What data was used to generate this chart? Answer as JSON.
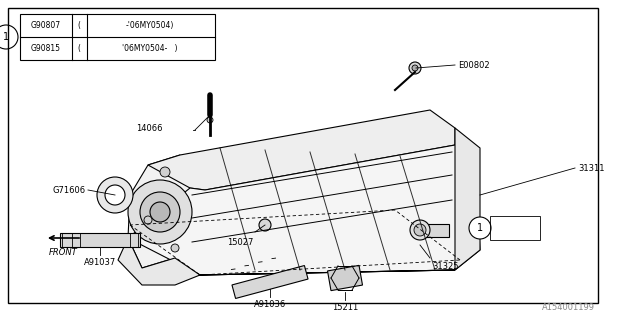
{
  "bg_color": "#ffffff",
  "line_color": "#000000",
  "watermark": "A154001199",
  "table_rows": [
    [
      "G90807",
      "(",
      "    -’06MY0504)"
    ],
    [
      "G90815",
      "(’06MY0504-",
      "            )"
    ]
  ]
}
